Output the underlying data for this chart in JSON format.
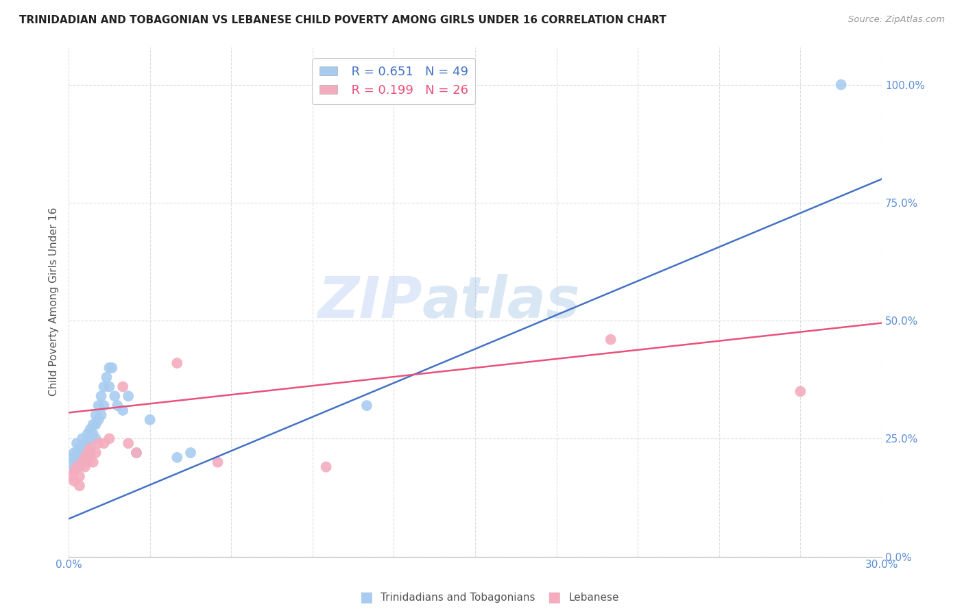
{
  "title": "TRINIDADIAN AND TOBAGONIAN VS LEBANESE CHILD POVERTY AMONG GIRLS UNDER 16 CORRELATION CHART",
  "source": "Source: ZipAtlas.com",
  "ylabel": "Child Poverty Among Girls Under 16",
  "xlim": [
    0.0,
    0.3
  ],
  "ylim": [
    0.0,
    1.08
  ],
  "yticks": [
    0.0,
    0.25,
    0.5,
    0.75,
    1.0
  ],
  "legend_blue_r": "0.651",
  "legend_blue_n": "49",
  "legend_pink_r": "0.199",
  "legend_pink_n": "26",
  "blue_color": "#A8CCF0",
  "pink_color": "#F4ACBE",
  "blue_line_color": "#4472C4",
  "pink_line_color": "#E8517A",
  "right_label_color": "#5B8ED6",
  "label_color": "#5B8ED6",
  "blue_scatter_x": [
    0.001,
    0.002,
    0.002,
    0.002,
    0.003,
    0.003,
    0.003,
    0.004,
    0.004,
    0.004,
    0.004,
    0.005,
    0.005,
    0.005,
    0.005,
    0.006,
    0.006,
    0.006,
    0.007,
    0.007,
    0.007,
    0.008,
    0.008,
    0.008,
    0.009,
    0.009,
    0.01,
    0.01,
    0.01,
    0.011,
    0.011,
    0.012,
    0.012,
    0.013,
    0.013,
    0.014,
    0.015,
    0.015,
    0.016,
    0.017,
    0.018,
    0.02,
    0.022,
    0.025,
    0.03,
    0.04,
    0.045,
    0.11,
    0.285
  ],
  "blue_scatter_y": [
    0.21,
    0.22,
    0.2,
    0.19,
    0.24,
    0.22,
    0.2,
    0.21,
    0.23,
    0.19,
    0.22,
    0.25,
    0.21,
    0.23,
    0.2,
    0.24,
    0.22,
    0.2,
    0.26,
    0.23,
    0.21,
    0.27,
    0.25,
    0.22,
    0.28,
    0.26,
    0.3,
    0.28,
    0.25,
    0.32,
    0.29,
    0.34,
    0.3,
    0.36,
    0.32,
    0.38,
    0.4,
    0.36,
    0.4,
    0.34,
    0.32,
    0.31,
    0.34,
    0.22,
    0.29,
    0.21,
    0.22,
    0.32,
    1.0
  ],
  "pink_scatter_x": [
    0.001,
    0.002,
    0.002,
    0.003,
    0.004,
    0.004,
    0.005,
    0.006,
    0.006,
    0.007,
    0.007,
    0.008,
    0.008,
    0.009,
    0.01,
    0.011,
    0.013,
    0.015,
    0.02,
    0.022,
    0.025,
    0.04,
    0.055,
    0.095,
    0.2,
    0.27
  ],
  "pink_scatter_y": [
    0.17,
    0.18,
    0.16,
    0.19,
    0.17,
    0.15,
    0.2,
    0.21,
    0.19,
    0.22,
    0.2,
    0.21,
    0.23,
    0.2,
    0.22,
    0.24,
    0.24,
    0.25,
    0.36,
    0.24,
    0.22,
    0.41,
    0.2,
    0.19,
    0.46,
    0.35
  ],
  "blue_line_x0": 0.0,
  "blue_line_y0": 0.08,
  "blue_line_x1": 0.3,
  "blue_line_y1": 0.8,
  "pink_line_x0": 0.0,
  "pink_line_y0": 0.305,
  "pink_line_x1": 0.3,
  "pink_line_y1": 0.495,
  "watermark_zip": "ZIP",
  "watermark_atlas": "atlas",
  "background_color": "#FFFFFF",
  "grid_color": "#DDDDDD"
}
